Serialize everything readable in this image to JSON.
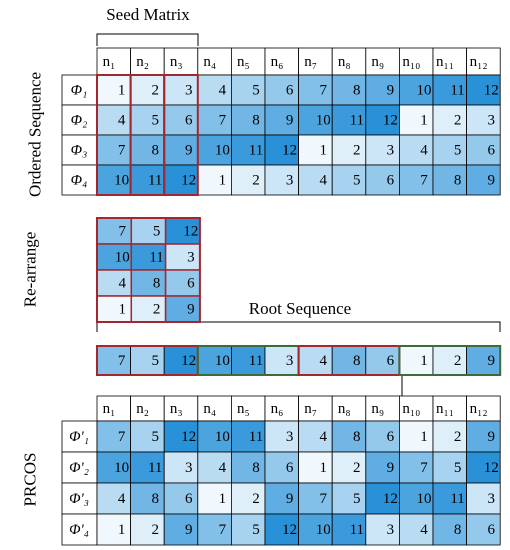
{
  "seed_matrix_label": "Seed Matrix",
  "ordered_sequence": {
    "label": "Ordered Sequence",
    "headers": [
      "n₁",
      "n₂",
      "n₃",
      "n₄",
      "n₅",
      "n₆",
      "n₇",
      "n₈",
      "n₉",
      "n₁₀",
      "n₁₁",
      "n₁₂"
    ],
    "row_labels": [
      "Φ₁",
      "Φ₂",
      "Φ₃",
      "Φ₄"
    ],
    "rows": [
      [
        1,
        2,
        3,
        4,
        5,
        6,
        7,
        8,
        9,
        10,
        11,
        12
      ],
      [
        4,
        5,
        6,
        7,
        8,
        9,
        10,
        11,
        12,
        1,
        2,
        3
      ],
      [
        7,
        8,
        9,
        10,
        11,
        12,
        1,
        2,
        3,
        4,
        5,
        6
      ],
      [
        10,
        11,
        12,
        1,
        2,
        3,
        4,
        5,
        6,
        7,
        8,
        9
      ]
    ]
  },
  "rearrange": {
    "label": "Re-arrange",
    "rows": [
      [
        7,
        5,
        12
      ],
      [
        10,
        11,
        3
      ],
      [
        4,
        8,
        6
      ],
      [
        1,
        2,
        9
      ]
    ]
  },
  "root_sequence": {
    "label": "Root Sequence",
    "values": [
      7,
      5,
      12,
      10,
      11,
      3,
      4,
      8,
      6,
      1,
      2,
      9
    ]
  },
  "prcos": {
    "label": "PRCOS",
    "headers": [
      "n₁",
      "n₂",
      "n₃",
      "n₄",
      "n₅",
      "n₆",
      "n₇",
      "n₈",
      "n₉",
      "n₁₀",
      "n₁₁",
      "n₁₂"
    ],
    "row_labels": [
      "Φ'₁",
      "Φ'₂",
      "Φ'₃",
      "Φ'₄"
    ],
    "rows": [
      [
        7,
        5,
        12,
        10,
        11,
        3,
        4,
        8,
        6,
        1,
        2,
        9
      ],
      [
        10,
        11,
        3,
        4,
        8,
        6,
        1,
        2,
        9,
        7,
        5,
        12
      ],
      [
        4,
        8,
        6,
        1,
        2,
        9,
        7,
        5,
        12,
        10,
        11,
        3
      ],
      [
        1,
        2,
        9,
        7,
        5,
        12,
        10,
        11,
        3,
        4,
        8,
        6
      ]
    ]
  }
}
